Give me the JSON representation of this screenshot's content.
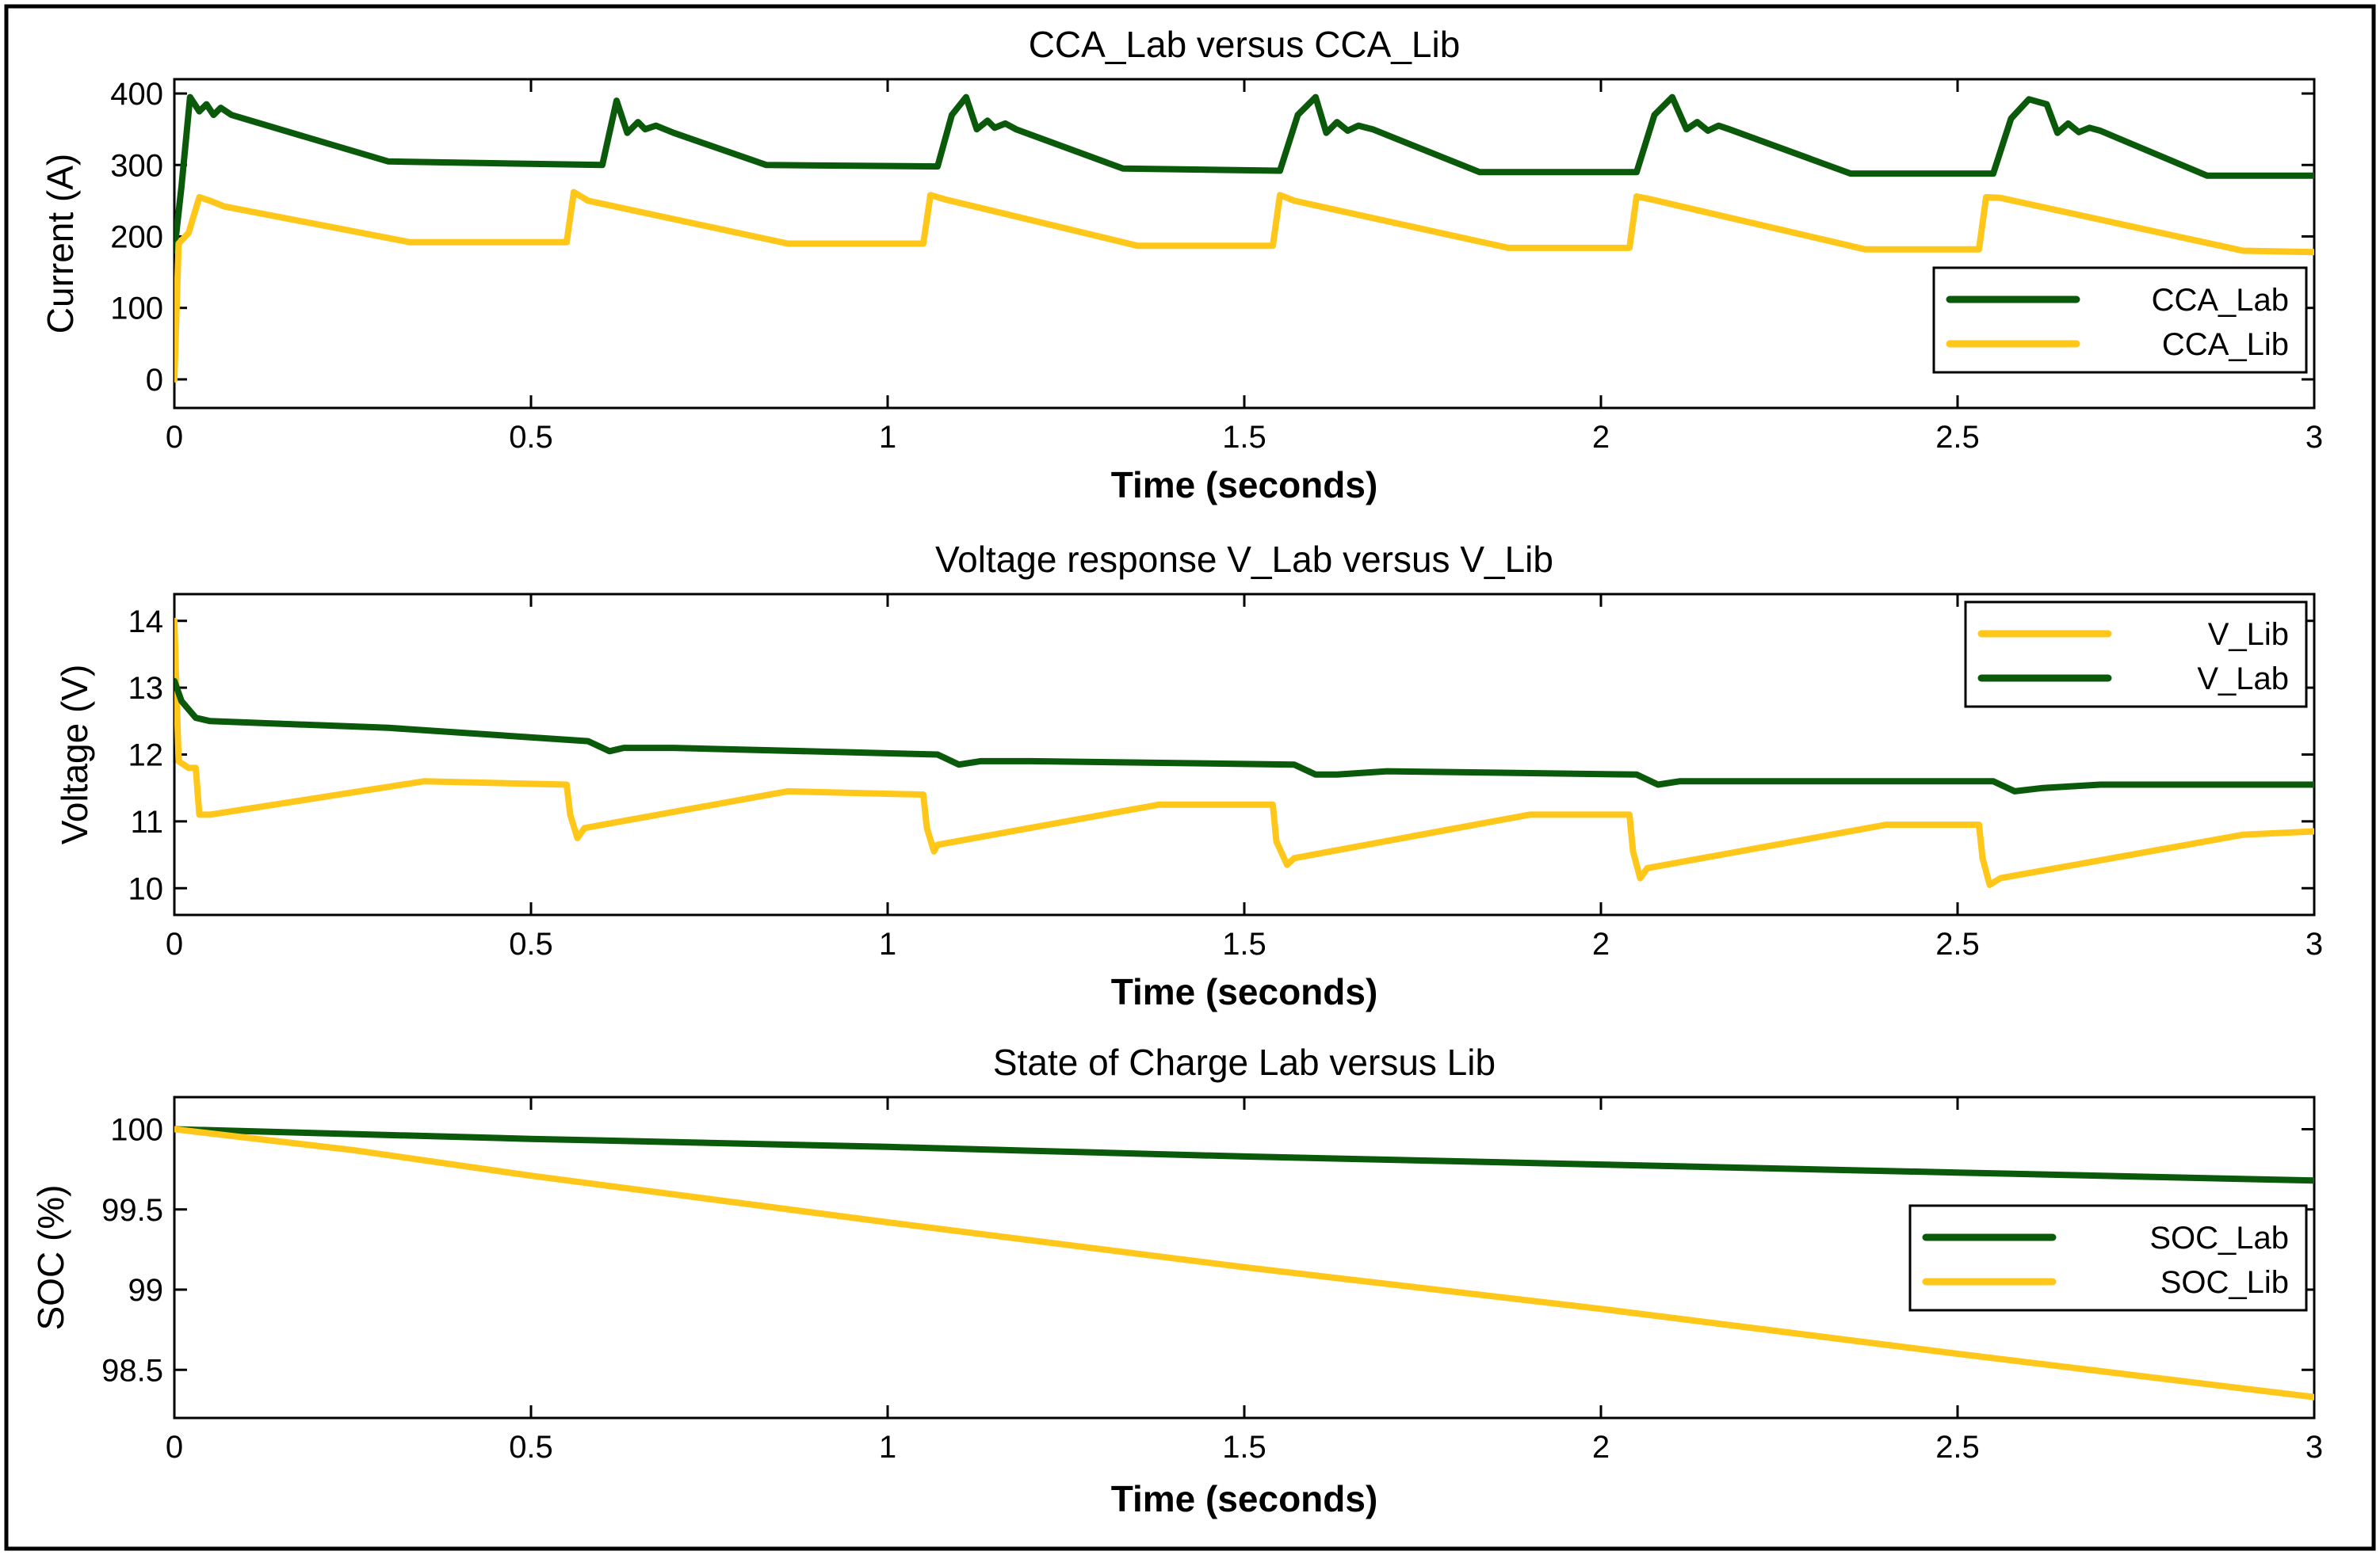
{
  "chart_data": [
    {
      "type": "line",
      "title": "CCA_Lab versus CCA_Lib",
      "xlabel": "Time (seconds)",
      "ylabel": "Current (A)",
      "xlim": [
        0,
        3
      ],
      "ylim": [
        -40,
        420
      ],
      "x_ticks": [
        0,
        0.5,
        1,
        1.5,
        2,
        2.5,
        3
      ],
      "x_tick_labels": [
        "0",
        "0.5",
        "1",
        "1.5",
        "2",
        "2.5",
        "3"
      ],
      "y_ticks": [
        0,
        100,
        200,
        300,
        400
      ],
      "y_tick_labels": [
        "0",
        "100",
        "200",
        "300",
        "400"
      ],
      "legend_position": "right",
      "series": [
        {
          "name": "CCA_Lab",
          "color": "#0b5a0b",
          "points": [
            [
              0,
              180
            ],
            [
              0.01,
              270
            ],
            [
              0.022,
              395
            ],
            [
              0.035,
              375
            ],
            [
              0.045,
              385
            ],
            [
              0.055,
              370
            ],
            [
              0.065,
              380
            ],
            [
              0.08,
              370
            ],
            [
              0.3,
              305
            ],
            [
              0.6,
              300
            ],
            [
              0.62,
              390
            ],
            [
              0.635,
              345
            ],
            [
              0.65,
              360
            ],
            [
              0.66,
              350
            ],
            [
              0.675,
              355
            ],
            [
              0.7,
              345
            ],
            [
              0.83,
              300
            ],
            [
              1.07,
              298
            ],
            [
              1.09,
              370
            ],
            [
              1.11,
              395
            ],
            [
              1.125,
              350
            ],
            [
              1.14,
              362
            ],
            [
              1.15,
              352
            ],
            [
              1.165,
              358
            ],
            [
              1.18,
              350
            ],
            [
              1.33,
              295
            ],
            [
              1.55,
              292
            ],
            [
              1.575,
              370
            ],
            [
              1.6,
              395
            ],
            [
              1.615,
              345
            ],
            [
              1.63,
              360
            ],
            [
              1.645,
              348
            ],
            [
              1.66,
              355
            ],
            [
              1.68,
              350
            ],
            [
              1.83,
              290
            ],
            [
              2.05,
              290
            ],
            [
              2.075,
              370
            ],
            [
              2.1,
              395
            ],
            [
              2.12,
              350
            ],
            [
              2.135,
              360
            ],
            [
              2.15,
              348
            ],
            [
              2.165,
              355
            ],
            [
              2.18,
              350
            ],
            [
              2.35,
              288
            ],
            [
              2.55,
              288
            ],
            [
              2.575,
              365
            ],
            [
              2.6,
              392
            ],
            [
              2.625,
              385
            ],
            [
              2.64,
              345
            ],
            [
              2.655,
              358
            ],
            [
              2.67,
              346
            ],
            [
              2.685,
              352
            ],
            [
              2.7,
              348
            ],
            [
              2.85,
              285
            ],
            [
              3,
              285
            ]
          ]
        },
        {
          "name": "CCA_Lib",
          "color": "#ffc71a",
          "points": [
            [
              0,
              0
            ],
            [
              0.006,
              190
            ],
            [
              0.02,
              205
            ],
            [
              0.035,
              255
            ],
            [
              0.05,
              250
            ],
            [
              0.07,
              242
            ],
            [
              0.33,
              192
            ],
            [
              0.55,
              192
            ],
            [
              0.56,
              262
            ],
            [
              0.58,
              250
            ],
            [
              0.86,
              190
            ],
            [
              1.05,
              190
            ],
            [
              1.06,
              258
            ],
            [
              1.08,
              252
            ],
            [
              1.35,
              187
            ],
            [
              1.54,
              187
            ],
            [
              1.55,
              258
            ],
            [
              1.57,
              250
            ],
            [
              1.87,
              184
            ],
            [
              2.04,
              184
            ],
            [
              2.05,
              256
            ],
            [
              2.07,
              252
            ],
            [
              2.37,
              182
            ],
            [
              2.53,
              182
            ],
            [
              2.54,
              255
            ],
            [
              2.56,
              254
            ],
            [
              2.9,
              180
            ],
            [
              3,
              178
            ]
          ]
        }
      ]
    },
    {
      "type": "line",
      "title": "Voltage response V_Lab versus V_Lib",
      "xlabel": "Time (seconds)",
      "ylabel": "Voltage (V)",
      "xlim": [
        0,
        3
      ],
      "ylim": [
        9.6,
        14.4
      ],
      "x_ticks": [
        0,
        0.5,
        1,
        1.5,
        2,
        2.5,
        3
      ],
      "x_tick_labels": [
        "0",
        "0.5",
        "1",
        "1.5",
        "2",
        "2.5",
        "3"
      ],
      "y_ticks": [
        10,
        11,
        12,
        13,
        14
      ],
      "y_tick_labels": [
        "10",
        "11",
        "12",
        "13",
        "14"
      ],
      "legend_position": "top-right",
      "series": [
        {
          "name": "V_Lib",
          "color": "#ffc71a",
          "points": [
            [
              0,
              14.0
            ],
            [
              0.006,
              11.9
            ],
            [
              0.02,
              11.8
            ],
            [
              0.03,
              11.8
            ],
            [
              0.035,
              11.1
            ],
            [
              0.05,
              11.1
            ],
            [
              0.35,
              11.6
            ],
            [
              0.55,
              11.55
            ],
            [
              0.555,
              11.1
            ],
            [
              0.565,
              10.75
            ],
            [
              0.575,
              10.9
            ],
            [
              0.86,
              11.45
            ],
            [
              1.05,
              11.4
            ],
            [
              1.055,
              10.9
            ],
            [
              1.065,
              10.55
            ],
            [
              1.07,
              10.65
            ],
            [
              1.38,
              11.25
            ],
            [
              1.54,
              11.25
            ],
            [
              1.545,
              10.7
            ],
            [
              1.56,
              10.35
            ],
            [
              1.57,
              10.45
            ],
            [
              1.9,
              11.1
            ],
            [
              2.04,
              11.1
            ],
            [
              2.045,
              10.55
            ],
            [
              2.055,
              10.15
            ],
            [
              2.065,
              10.3
            ],
            [
              2.4,
              10.95
            ],
            [
              2.53,
              10.95
            ],
            [
              2.535,
              10.45
            ],
            [
              2.545,
              10.05
            ],
            [
              2.56,
              10.15
            ],
            [
              2.9,
              10.8
            ],
            [
              3,
              10.85
            ]
          ]
        },
        {
          "name": "V_Lab",
          "color": "#0b5a0b",
          "points": [
            [
              0,
              13.1
            ],
            [
              0.01,
              12.8
            ],
            [
              0.03,
              12.55
            ],
            [
              0.05,
              12.5
            ],
            [
              0.3,
              12.4
            ],
            [
              0.58,
              12.2
            ],
            [
              0.61,
              12.05
            ],
            [
              0.63,
              12.1
            ],
            [
              0.7,
              12.1
            ],
            [
              1.07,
              12.0
            ],
            [
              1.1,
              11.85
            ],
            [
              1.13,
              11.9
            ],
            [
              1.2,
              11.9
            ],
            [
              1.57,
              11.85
            ],
            [
              1.6,
              11.7
            ],
            [
              1.63,
              11.7
            ],
            [
              1.7,
              11.75
            ],
            [
              2.05,
              11.7
            ],
            [
              2.08,
              11.55
            ],
            [
              2.11,
              11.6
            ],
            [
              2.2,
              11.6
            ],
            [
              2.55,
              11.6
            ],
            [
              2.58,
              11.45
            ],
            [
              2.62,
              11.5
            ],
            [
              2.7,
              11.55
            ],
            [
              3,
              11.55
            ]
          ]
        }
      ]
    },
    {
      "type": "line",
      "title": "State of Charge Lab versus Lib",
      "xlabel": "Time (seconds)",
      "ylabel": "SOC (%)",
      "xlim": [
        0,
        3
      ],
      "ylim": [
        98.2,
        100.2
      ],
      "x_ticks": [
        0,
        0.5,
        1,
        1.5,
        2,
        2.5,
        3
      ],
      "x_tick_labels": [
        "0",
        "0.5",
        "1",
        "1.5",
        "2",
        "2.5",
        "3"
      ],
      "y_ticks": [
        98.5,
        99,
        99.5,
        100
      ],
      "y_tick_labels": [
        "98.5",
        "99",
        "99.5",
        "100"
      ],
      "legend_position": "right",
      "series": [
        {
          "name": "SOC_Lab",
          "color": "#0b5a0b",
          "points": [
            [
              0,
              100.0
            ],
            [
              0.5,
              99.94
            ],
            [
              1,
              99.89
            ],
            [
              1.5,
              99.83
            ],
            [
              2,
              99.78
            ],
            [
              2.5,
              99.73
            ],
            [
              3,
              99.68
            ]
          ]
        },
        {
          "name": "SOC_Lib",
          "color": "#ffc71a",
          "points": [
            [
              0,
              100.0
            ],
            [
              0.25,
              99.87
            ],
            [
              0.5,
              99.71
            ],
            [
              1,
              99.42
            ],
            [
              1.5,
              99.14
            ],
            [
              2,
              98.88
            ],
            [
              2.5,
              98.6
            ],
            [
              3,
              98.33
            ]
          ]
        }
      ]
    }
  ]
}
